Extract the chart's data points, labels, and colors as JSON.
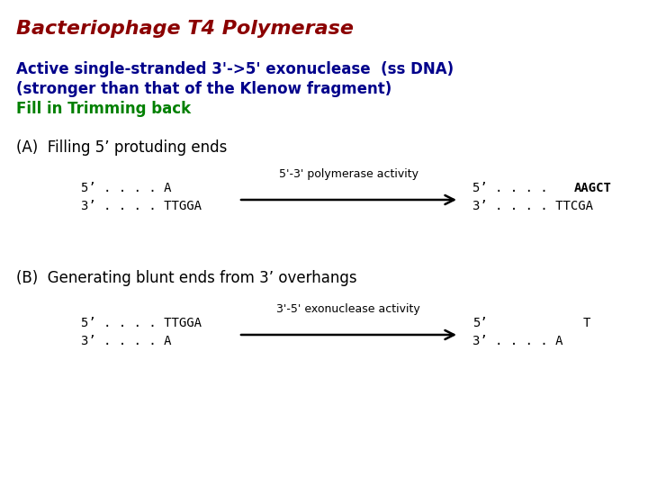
{
  "title": "Bacteriophage T4 Polymerase",
  "title_color": "#8B0000",
  "title_fontsize": 16,
  "subtitle_line1": "Active single-stranded 3'->5' exonuclease  (ss DNA)",
  "subtitle_line2": "(stronger than that of the Klenow fragment)",
  "subtitle_color": "#00008B",
  "subtitle_fontsize": 12,
  "fill_trim_text": "Fill in Trimming back",
  "fill_trim_color": "#008000",
  "fill_trim_fontsize": 12,
  "section_A_label": "(A)  Filling 5’ protuding ends",
  "section_B_label": "(B)  Generating blunt ends from 3’ overhangs",
  "section_label_fontsize": 12,
  "section_label_color": "#000000",
  "A_left_top": "5’ . . . . A",
  "A_left_bot": "3’ . . . . TTGGA",
  "A_arrow_label": "5'-3' polymerase activity",
  "A_right_top_prefix": "5’ . . . . ",
  "A_right_top_bold": "AAGCT",
  "A_right_bot": "3’ . . . . TTCGA",
  "B_left_top": "5’ . . . . TTGGA",
  "B_left_bot": "3’ . . . . A",
  "B_arrow_label": "3'-5' exonuclease activity",
  "B_right_top_1": "5’",
  "B_right_top_2": "T",
  "B_right_bot": "3’ . . . . A",
  "dna_fontsize": 10,
  "arrow_label_fontsize": 9,
  "arrow_color": "#000000",
  "bg_color": "#ffffff"
}
